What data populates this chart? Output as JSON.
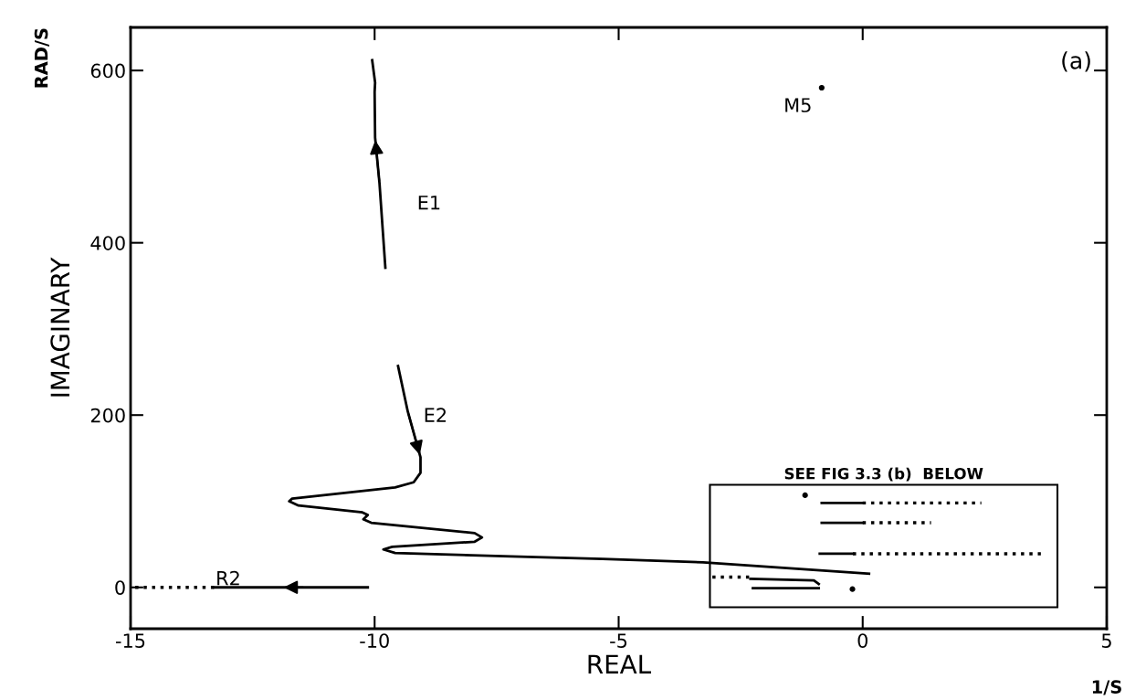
{
  "chart_data": {
    "type": "line",
    "xlabel": "REAL",
    "ylabel": "IMAGINARY",
    "xlim": [
      -15,
      5
    ],
    "ylim": [
      -48,
      650
    ],
    "xticks": [
      -15,
      -10,
      -5,
      0,
      5
    ],
    "yticks": [
      0,
      200,
      400,
      600
    ],
    "grid": false,
    "legend": false,
    "series": [
      {
        "name": "E1",
        "color": "#000000",
        "line_style": "solid",
        "x": [
          -9.78,
          -9.9,
          -9.99,
          -10.0,
          -9.99,
          -10.05
        ],
        "values": [
          371,
          469,
          522,
          575,
          586,
          612
        ]
      },
      {
        "name": "E2",
        "color": "#000000",
        "line_style": "solid",
        "x": [
          -9.52,
          -9.32,
          -9.06,
          -9.06,
          -9.2,
          -9.58,
          -11.69,
          -11.75,
          -11.56,
          -10.25,
          -10.14,
          -10.23,
          -10.07,
          -7.95,
          -7.8,
          -7.95,
          -9.64,
          -9.82,
          -9.58,
          -7.2,
          -5.33,
          -3.27,
          0.13
        ],
        "values": [
          257,
          204,
          151,
          133,
          122,
          116,
          103,
          100,
          95,
          87,
          84,
          79,
          75,
          63,
          58,
          53,
          47,
          44,
          40,
          36,
          33,
          29,
          16
        ]
      },
      {
        "name": "R2",
        "color": "#000000",
        "line_style": "solid",
        "x": [
          -10.14,
          -13.29
        ],
        "values": [
          0,
          0
        ]
      },
      {
        "color": "#000000",
        "line_style": "dotted",
        "x": [
          -13.29,
          -15
        ],
        "values": [
          0,
          0
        ]
      },
      {
        "name": "M5",
        "type": "scatter",
        "color": "#000000",
        "marker": "circle",
        "x": [
          -0.84
        ],
        "values": [
          580
        ]
      },
      {
        "type": "scatter",
        "color": "#000000",
        "marker": "circle",
        "x": [
          -1.18,
          -0.21
        ],
        "values": [
          107,
          -2
        ]
      },
      {
        "color": "#000000",
        "line_style": "solid",
        "x": [
          -0.84,
          0.0
        ],
        "values": [
          98,
          98
        ]
      },
      {
        "color": "#000000",
        "line_style": "dotted",
        "x": [
          0.0,
          2.43
        ],
        "values": [
          98,
          98
        ]
      },
      {
        "color": "#000000",
        "line_style": "solid",
        "x": [
          -0.84,
          0.0
        ],
        "values": [
          75,
          75
        ]
      },
      {
        "color": "#000000",
        "line_style": "dotted",
        "x": [
          0.0,
          1.4
        ],
        "values": [
          75,
          75
        ]
      },
      {
        "color": "#000000",
        "line_style": "solid",
        "x": [
          -0.88,
          -0.2
        ],
        "values": [
          39,
          39
        ]
      },
      {
        "color": "#000000",
        "line_style": "dotted",
        "x": [
          -0.2,
          3.65
        ],
        "values": [
          39,
          39
        ]
      },
      {
        "color": "#000000",
        "line_style": "dotted",
        "x": [
          -3.08,
          -2.3
        ],
        "values": [
          12,
          12
        ]
      },
      {
        "color": "#000000",
        "line_style": "solid",
        "x": [
          -2.3,
          -1.0,
          -0.9
        ],
        "values": [
          10,
          8,
          4
        ]
      },
      {
        "color": "#000000",
        "line_style": "solid",
        "x": [
          -2.25,
          -0.9
        ],
        "values": [
          -1,
          -1
        ]
      }
    ],
    "annotations": [
      "SEE FIG 3.3 (b)  BELOW",
      "(a)",
      "RAD/S",
      "1/S"
    ]
  }
}
